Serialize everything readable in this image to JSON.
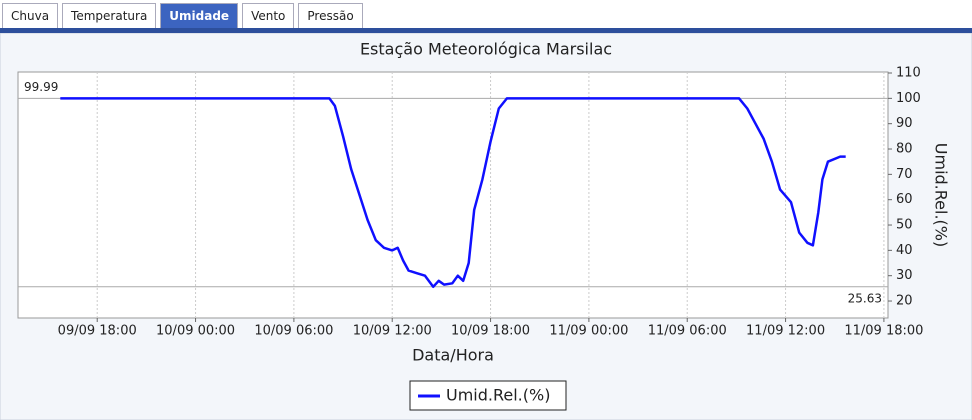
{
  "tabs": [
    "Chuva",
    "Temperatura",
    "Umidade",
    "Vento",
    "Pressão"
  ],
  "active_tab": 2,
  "chart_data": {
    "type": "line",
    "title": "Estação Meteorológica Marsilac",
    "x_label": "Data/Hora",
    "y_label": "Umid.Rel.(%)",
    "y_axis_side": "right",
    "grid": "x",
    "x": [
      "09/09 15:45",
      "10/09 08:10",
      "10/09 08:30",
      "10/09 09:00",
      "10/09 09:30",
      "10/09 10:00",
      "10/09 10:30",
      "10/09 11:00",
      "10/09 11:30",
      "10/09 12:00",
      "10/09 12:20",
      "10/09 12:40",
      "10/09 13:00",
      "10/09 13:30",
      "10/09 14:00",
      "10/09 14:30",
      "10/09 14:50",
      "10/09 15:10",
      "10/09 15:40",
      "10/09 16:00",
      "10/09 16:20",
      "10/09 16:40",
      "10/09 17:00",
      "10/09 17:30",
      "10/09 18:00",
      "10/09 18:30",
      "10/09 19:00",
      "11/09 09:10",
      "11/09 09:40",
      "11/09 10:10",
      "11/09 10:40",
      "11/09 11:10",
      "11/09 11:40",
      "11/09 12:20",
      "11/09 12:50",
      "11/09 13:20",
      "11/09 13:40",
      "11/09 14:00",
      "11/09 14:15",
      "11/09 14:35",
      "11/09 15:20",
      "11/09 15:40"
    ],
    "series": [
      {
        "name": "Umid.Rel.(%)",
        "color": "#1010ff",
        "values": [
          99.99,
          99.99,
          97,
          85,
          72,
          62,
          52,
          44,
          41,
          40,
          41,
          36,
          32,
          31,
          30,
          25.63,
          28,
          26.5,
          27,
          30,
          28,
          35,
          56,
          68,
          83,
          96,
          99.99,
          99.99,
          96,
          90,
          84,
          75,
          64,
          59,
          47,
          43,
          42,
          55,
          68,
          75,
          77,
          77
        ]
      }
    ],
    "markers": [
      {
        "value": 99.99,
        "label_side": "left"
      },
      {
        "value": 25.63,
        "label_side": "right"
      }
    ],
    "xlim": [
      "09/09 13:10",
      "11/09 18:15"
    ],
    "xticks": [
      "09/09 18:00",
      "10/09 00:00",
      "10/09 06:00",
      "10/09 12:00",
      "10/09 18:00",
      "11/09 00:00",
      "11/09 06:00",
      "11/09 12:00",
      "11/09 18:00"
    ],
    "ylim": [
      13.3,
      110.4
    ],
    "yticks": [
      20,
      30,
      40,
      50,
      60,
      70,
      80,
      90,
      100,
      110
    ]
  }
}
